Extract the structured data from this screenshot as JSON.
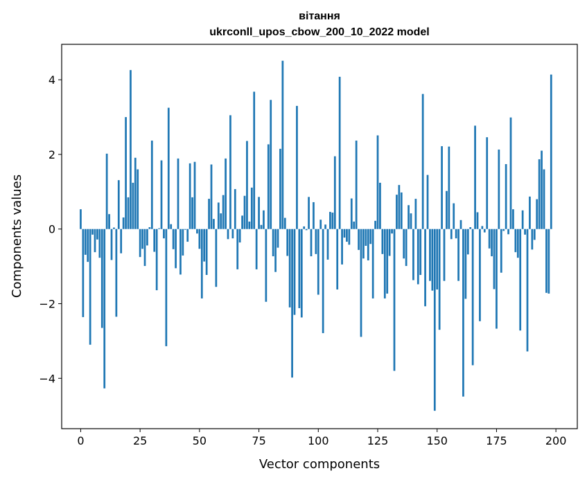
{
  "chart_data": {
    "type": "bar",
    "title": "вітання",
    "subtitle": "ukrconll_upos_cbow_200_10_2022 model",
    "xlabel": "Vector components",
    "ylabel": "Components values",
    "xlim": [
      -8,
      209
    ],
    "ylim": [
      -5.35,
      4.95
    ],
    "x_ticks": [
      0,
      25,
      50,
      75,
      100,
      125,
      150,
      175,
      200
    ],
    "y_ticks": [
      -4,
      -2,
      0,
      2,
      4
    ],
    "y_tick_labels": [
      "−4",
      "−2",
      "0",
      "2",
      "4"
    ],
    "bar_color": "#1f77b4",
    "grid": false,
    "series": [
      {
        "name": "вітання",
        "x_start": 0,
        "values": [
          0.53,
          -2.36,
          -0.69,
          -0.88,
          -3.1,
          -0.15,
          -0.62,
          -0.28,
          -0.77,
          -2.65,
          -4.27,
          2.02,
          0.4,
          -0.83,
          0.04,
          -2.35,
          1.31,
          -0.65,
          0.31,
          3.0,
          0.85,
          4.26,
          1.24,
          1.91,
          1.6,
          -0.75,
          -0.53,
          -0.99,
          -0.44,
          0.05,
          2.37,
          -0.61,
          -1.64,
          0.02,
          1.84,
          -0.25,
          -3.14,
          3.25,
          0.13,
          -0.54,
          -1.05,
          1.89,
          -1.22,
          -0.71,
          -0.02,
          -0.34,
          1.76,
          0.85,
          1.8,
          -0.12,
          -0.53,
          -1.86,
          -0.87,
          -1.23,
          0.81,
          1.73,
          0.27,
          -1.55,
          0.71,
          0.42,
          0.91,
          1.89,
          -0.27,
          3.05,
          -0.25,
          1.07,
          -1.08,
          -0.36,
          0.36,
          0.89,
          2.36,
          0.2,
          1.11,
          3.68,
          -1.08,
          0.86,
          0.11,
          0.5,
          -1.95,
          2.27,
          3.46,
          -0.73,
          -1.15,
          -0.5,
          2.15,
          4.51,
          0.3,
          -0.72,
          -2.1,
          -3.98,
          -2.3,
          3.3,
          -2.12,
          -2.37,
          0.07,
          -0.03,
          0.86,
          -0.73,
          0.72,
          -0.67,
          -1.76,
          0.25,
          -2.79,
          0.12,
          -0.82,
          0.46,
          0.44,
          1.95,
          -1.62,
          4.08,
          -0.95,
          -0.23,
          -0.34,
          -0.42,
          0.82,
          0.2,
          2.37,
          -0.56,
          -2.89,
          -0.79,
          -0.45,
          -0.84,
          -0.4,
          -1.86,
          0.22,
          2.51,
          1.24,
          -0.67,
          -1.86,
          -1.73,
          -0.72,
          -0.12,
          -3.8,
          0.92,
          1.18,
          0.98,
          -0.79,
          -0.99,
          0.64,
          0.42,
          -1.37,
          0.81,
          -1.48,
          -1.23,
          3.62,
          -2.07,
          1.45,
          -1.39,
          -1.65,
          -4.87,
          -1.62,
          -2.7,
          2.22,
          -1.39,
          1.02,
          2.21,
          -0.27,
          0.69,
          -0.25,
          -1.39,
          0.24,
          -4.49,
          -1.87,
          -0.68,
          0.05,
          -3.65,
          2.77,
          0.45,
          -2.47,
          0.08,
          -0.09,
          2.46,
          -0.52,
          -0.73,
          -1.61,
          -2.67,
          2.13,
          -1.17,
          -0.05,
          1.74,
          -0.14,
          2.99,
          0.53,
          -0.62,
          -0.77,
          -2.72,
          0.5,
          -0.15,
          -3.28,
          0.87,
          -0.55,
          -0.29,
          0.8,
          1.87,
          2.1,
          1.6,
          -1.71,
          -1.73,
          4.14
        ]
      }
    ]
  }
}
